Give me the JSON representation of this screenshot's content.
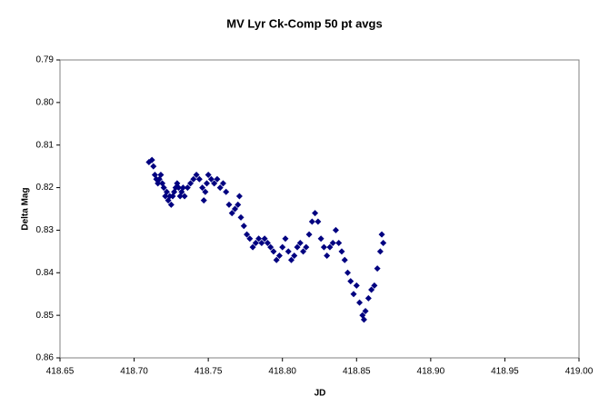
{
  "chart_data": {
    "type": "scatter",
    "title": "MV Lyr Ck-Comp 50 pt avgs",
    "x_label": "JD",
    "y_label": "Delta Mag",
    "xlim": [
      418.65,
      419.0
    ],
    "xticks": [
      418.65,
      {
        "value": 418.7,
        "label": "418.70"
      },
      418.75,
      {
        "value": 418.8,
        "label": "418.80"
      },
      418.85,
      {
        "value": 418.9,
        "label": "418.90"
      },
      418.95,
      {
        "value": 419.0,
        "label": "419.00"
      }
    ],
    "ylim": [
      0.79,
      0.86
    ],
    "y_reversed": true,
    "yticks": [
      0.79,
      {
        "value": 0.8,
        "label": "0.80"
      },
      0.81,
      0.82,
      0.83,
      0.84,
      0.85,
      0.86
    ],
    "grid": false,
    "series": [
      {
        "name": "Delta Mag",
        "color": "#000080",
        "x": [
          418.71,
          418.712,
          418.713,
          418.714,
          418.715,
          418.716,
          418.717,
          418.718,
          418.719,
          418.72,
          418.721,
          418.722,
          418.723,
          418.724,
          418.725,
          418.726,
          418.727,
          418.728,
          418.729,
          418.73,
          418.731,
          418.732,
          418.733,
          418.734,
          418.736,
          418.738,
          418.74,
          418.742,
          418.744,
          418.746,
          418.747,
          418.748,
          418.749,
          418.75,
          418.752,
          418.754,
          418.756,
          418.758,
          418.76,
          418.762,
          418.764,
          418.766,
          418.768,
          418.77,
          418.771,
          418.772,
          418.774,
          418.776,
          418.778,
          418.78,
          418.782,
          418.784,
          418.786,
          418.788,
          418.79,
          418.792,
          418.794,
          418.796,
          418.798,
          418.8,
          418.802,
          418.804,
          418.806,
          418.808,
          418.81,
          418.812,
          418.814,
          418.816,
          418.818,
          418.82,
          418.822,
          418.824,
          418.826,
          418.828,
          418.83,
          418.832,
          418.834,
          418.836,
          418.838,
          418.84,
          418.842,
          418.844,
          418.846,
          418.848,
          418.85,
          418.852,
          418.854,
          418.855,
          418.856,
          418.858,
          418.86,
          418.862,
          418.864,
          418.866,
          418.867,
          418.868
        ],
        "values": [
          0.814,
          0.8135,
          0.815,
          0.817,
          0.818,
          0.819,
          0.818,
          0.817,
          0.819,
          0.82,
          0.822,
          0.821,
          0.823,
          0.822,
          0.824,
          0.822,
          0.821,
          0.82,
          0.819,
          0.82,
          0.822,
          0.821,
          0.82,
          0.822,
          0.82,
          0.819,
          0.818,
          0.817,
          0.818,
          0.82,
          0.823,
          0.821,
          0.819,
          0.817,
          0.818,
          0.819,
          0.818,
          0.82,
          0.819,
          0.821,
          0.824,
          0.826,
          0.825,
          0.824,
          0.822,
          0.827,
          0.829,
          0.831,
          0.832,
          0.834,
          0.833,
          0.832,
          0.833,
          0.832,
          0.833,
          0.834,
          0.835,
          0.837,
          0.836,
          0.834,
          0.832,
          0.835,
          0.837,
          0.836,
          0.834,
          0.833,
          0.835,
          0.834,
          0.831,
          0.828,
          0.826,
          0.828,
          0.832,
          0.834,
          0.836,
          0.834,
          0.833,
          0.83,
          0.833,
          0.835,
          0.837,
          0.84,
          0.842,
          0.845,
          0.843,
          0.847,
          0.85,
          0.851,
          0.849,
          0.846,
          0.844,
          0.843,
          0.839,
          0.835,
          0.831,
          0.833
        ]
      }
    ]
  }
}
